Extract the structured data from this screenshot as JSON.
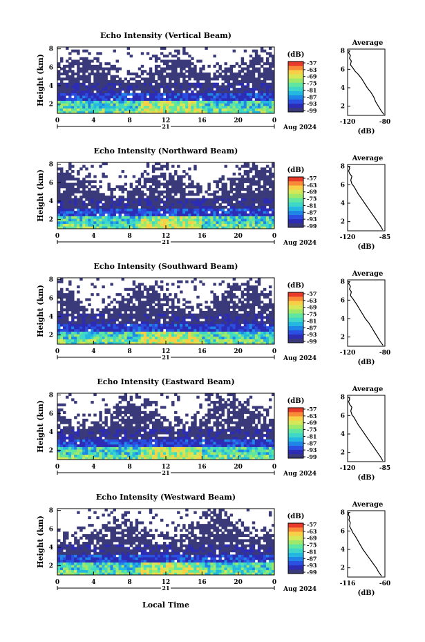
{
  "footer": {
    "xlabel": "Local Time"
  },
  "colorbar": {
    "unit": "(dB)",
    "tick_labels": [
      "-57",
      "-63",
      "-69",
      "-75",
      "-81",
      "-87",
      "-93",
      "-99"
    ],
    "colors": [
      "#3a3a7a",
      "#2c2cb4",
      "#2b4fe0",
      "#1f86e8",
      "#24b8e0",
      "#3fd8c8",
      "#5fe6a0",
      "#9ee86a",
      "#d6e858",
      "#f8d048",
      "#f88a38",
      "#e83a2a"
    ]
  },
  "chart_data": [
    {
      "type": "heatmap",
      "title": "Echo Intensity (Vertical Beam)",
      "ylabel": "Height (km)",
      "x_ticks": [
        "0",
        "4",
        "8",
        "12",
        "16",
        "20",
        "0"
      ],
      "date_day": "21",
      "date_label": "Aug 2024",
      "xlim": [
        0,
        24
      ],
      "ylim": [
        1,
        8.2
      ],
      "y_ticks": [
        "2",
        "4",
        "6",
        "8"
      ],
      "cbar_ticks": [
        "-57",
        "-63",
        "-69",
        "-75",
        "-81",
        "-87",
        "-93",
        "-99"
      ],
      "profile": {
        "title": "Average",
        "xlabel": "(dB)",
        "x_ticks": [
          "-120",
          "-80"
        ],
        "xlim": [
          -120,
          -80
        ],
        "y_ticks": [
          "2",
          "4",
          "6",
          "8"
        ],
        "x": [
          -81,
          -84,
          -87,
          -90,
          -92,
          -95,
          -99,
          -102,
          -105,
          -109,
          -112,
          -114,
          -117,
          -116,
          -118,
          -117,
          -119,
          -118
        ],
        "y": [
          1.1,
          1.5,
          2.0,
          2.5,
          3.0,
          3.5,
          4.0,
          4.5,
          5.0,
          5.5,
          5.8,
          6.1,
          6.5,
          6.9,
          7.2,
          7.5,
          7.8,
          8.0
        ]
      }
    },
    {
      "type": "heatmap",
      "title": "Echo Intensity (Northward Beam)",
      "ylabel": "Height (km)",
      "x_ticks": [
        "0",
        "4",
        "8",
        "12",
        "16",
        "20",
        "0"
      ],
      "date_day": "21",
      "date_label": "Aug 2024",
      "xlim": [
        0,
        24
      ],
      "ylim": [
        1,
        8.2
      ],
      "y_ticks": [
        "2",
        "4",
        "6",
        "8"
      ],
      "cbar_ticks": [
        "-57",
        "-63",
        "-69",
        "-75",
        "-81",
        "-87",
        "-93",
        "-99"
      ],
      "profile": {
        "title": "Average",
        "xlabel": "(dB)",
        "x_ticks": [
          "-120",
          "-85"
        ],
        "xlim": [
          -120,
          -85
        ],
        "y_ticks": [
          "2",
          "4",
          "6",
          "8"
        ],
        "x": [
          -87,
          -89,
          -92,
          -95,
          -98,
          -101,
          -104,
          -107,
          -110,
          -112,
          -114,
          -116,
          -117,
          -116,
          -118,
          -119,
          -118,
          -119
        ],
        "y": [
          1.1,
          1.5,
          2.0,
          2.5,
          3.0,
          3.5,
          4.0,
          4.5,
          5.0,
          5.4,
          5.8,
          6.1,
          6.5,
          6.9,
          7.2,
          7.5,
          7.8,
          8.0
        ]
      }
    },
    {
      "type": "heatmap",
      "title": "Echo Intensity (Southward Beam)",
      "ylabel": "Height (km)",
      "x_ticks": [
        "0",
        "4",
        "8",
        "12",
        "16",
        "20",
        "0"
      ],
      "date_day": "21",
      "date_label": "Aug 2024",
      "xlim": [
        0,
        24
      ],
      "ylim": [
        1,
        8.2
      ],
      "y_ticks": [
        "2",
        "4",
        "6",
        "8"
      ],
      "cbar_ticks": [
        "-57",
        "-63",
        "-69",
        "-75",
        "-81",
        "-87",
        "-93",
        "-99"
      ],
      "profile": {
        "title": "Average",
        "xlabel": "(dB)",
        "x_ticks": [
          "-120",
          "-80"
        ],
        "xlim": [
          -120,
          -80
        ],
        "y_ticks": [
          "2",
          "4",
          "6",
          "8"
        ],
        "x": [
          -82,
          -85,
          -88,
          -91,
          -94,
          -97,
          -101,
          -104,
          -107,
          -110,
          -112,
          -114,
          -117,
          -116,
          -118,
          -117,
          -119,
          -118
        ],
        "y": [
          1.1,
          1.5,
          2.0,
          2.5,
          3.0,
          3.5,
          4.0,
          4.5,
          5.0,
          5.5,
          5.8,
          6.1,
          6.5,
          6.9,
          7.2,
          7.5,
          7.8,
          8.0
        ]
      }
    },
    {
      "type": "heatmap",
      "title": "Echo Intensity (Eastward Beam)",
      "ylabel": "Height (km)",
      "x_ticks": [
        "0",
        "4",
        "8",
        "12",
        "16",
        "20",
        "0"
      ],
      "date_day": "21",
      "date_label": "Aug 2024",
      "xlim": [
        0,
        24
      ],
      "ylim": [
        1,
        8.2
      ],
      "y_ticks": [
        "2",
        "4",
        "6",
        "8"
      ],
      "cbar_ticks": [
        "-57",
        "-63",
        "-69",
        "-75",
        "-81",
        "-87",
        "-93",
        "-99"
      ],
      "profile": {
        "title": "Average",
        "xlabel": "(dB)",
        "x_ticks": [
          "-120",
          "-85"
        ],
        "xlim": [
          -120,
          -85
        ],
        "y_ticks": [
          "2",
          "4",
          "6",
          "8"
        ],
        "x": [
          -87,
          -89,
          -92,
          -95,
          -98,
          -101,
          -104,
          -107,
          -110,
          -112,
          -114,
          -116,
          -117,
          -116,
          -118,
          -119,
          -118,
          -119
        ],
        "y": [
          1.1,
          1.5,
          2.0,
          2.5,
          3.0,
          3.5,
          4.0,
          4.5,
          5.0,
          5.4,
          5.8,
          6.1,
          6.5,
          6.9,
          7.2,
          7.5,
          7.8,
          8.0
        ]
      }
    },
    {
      "type": "heatmap",
      "title": "Echo Intensity (Westward Beam)",
      "ylabel": "Height (km)",
      "x_ticks": [
        "0",
        "4",
        "8",
        "12",
        "16",
        "20",
        "0"
      ],
      "date_day": "21",
      "date_label": "Aug 2024",
      "xlim": [
        0,
        24
      ],
      "ylim": [
        1,
        8.2
      ],
      "y_ticks": [
        "2",
        "4",
        "6",
        "8"
      ],
      "cbar_ticks": [
        "-57",
        "-63",
        "-69",
        "-75",
        "-81",
        "-87",
        "-93",
        "-99"
      ],
      "profile": {
        "title": "Average",
        "xlabel": "(dB)",
        "x_ticks": [
          "-116",
          "-60"
        ],
        "xlim": [
          -116,
          -60
        ],
        "y_ticks": [
          "2",
          "4",
          "6",
          "8"
        ],
        "x": [
          -65,
          -69,
          -73,
          -78,
          -83,
          -88,
          -93,
          -97,
          -101,
          -105,
          -108,
          -110,
          -113,
          -112,
          -114,
          -113,
          -115,
          -114
        ],
        "y": [
          1.1,
          1.5,
          2.0,
          2.5,
          3.0,
          3.5,
          4.0,
          4.5,
          5.0,
          5.5,
          5.8,
          6.1,
          6.5,
          6.9,
          7.2,
          7.5,
          7.8,
          8.0
        ]
      }
    }
  ]
}
